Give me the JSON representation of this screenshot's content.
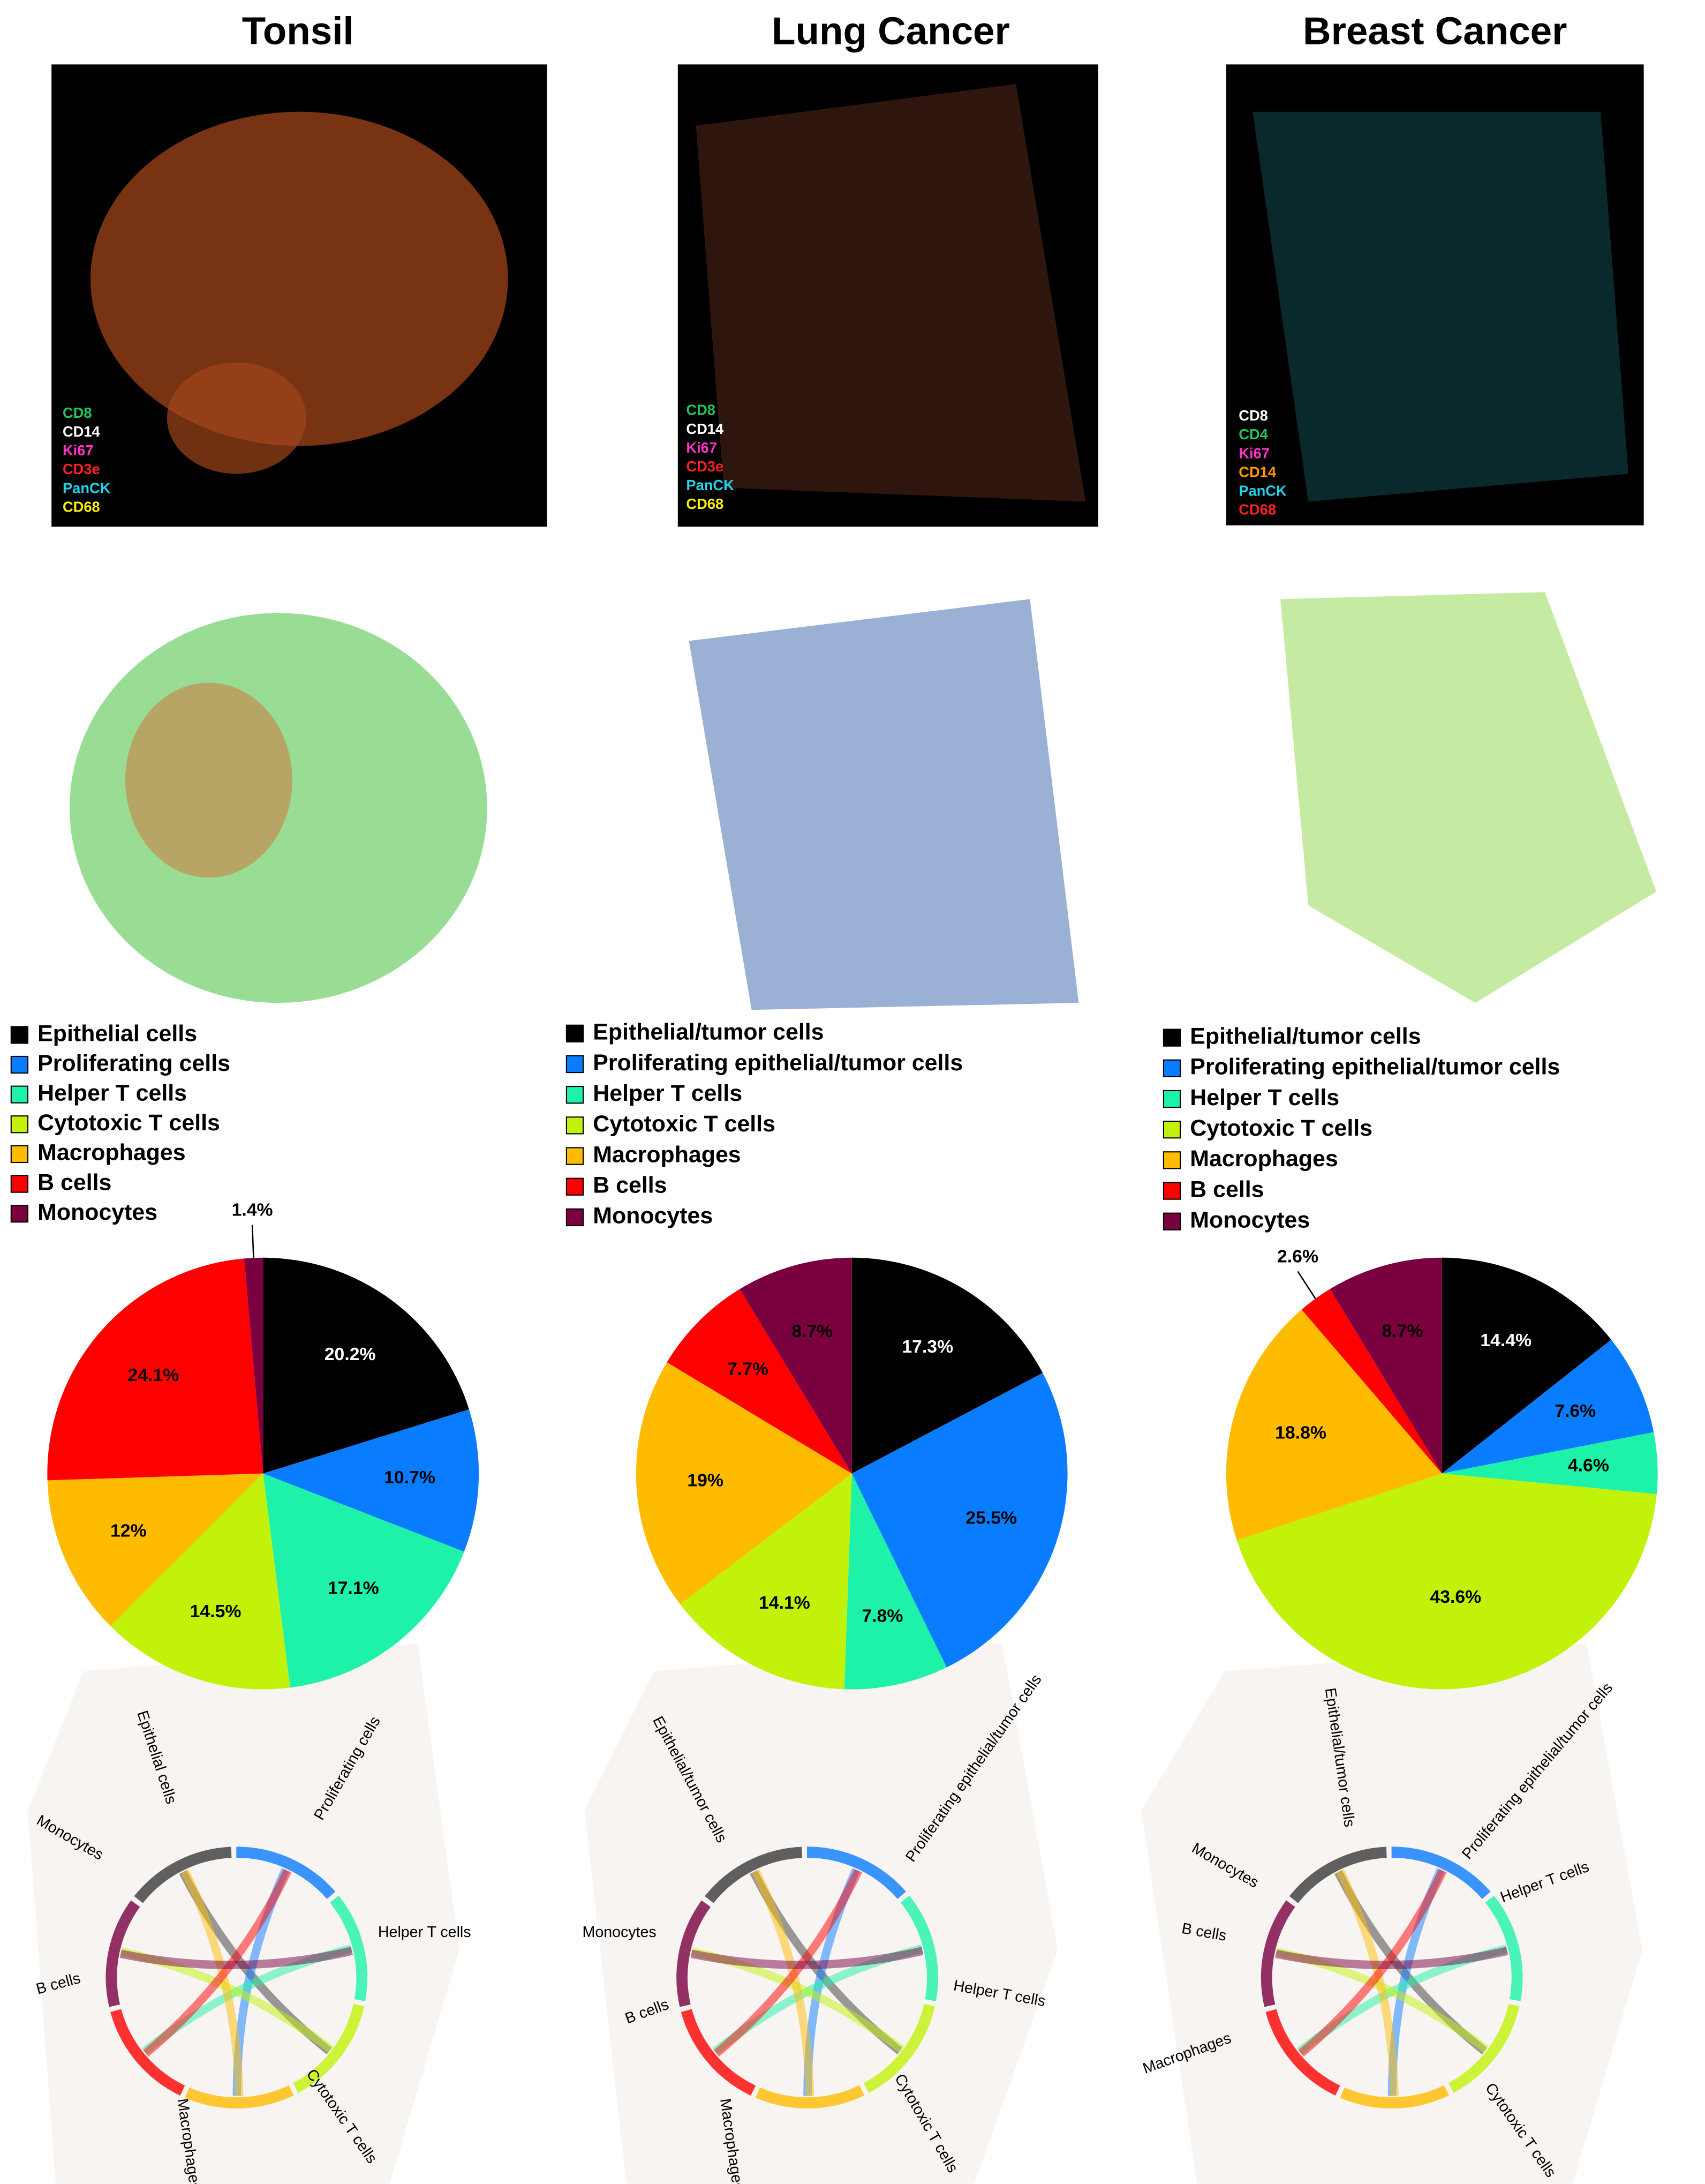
{
  "chart_data": [
    {
      "type": "pie",
      "title": "Tonsil",
      "categories": [
        "Epithelial cells",
        "Proliferating cells",
        "Helper T cells",
        "Cytotoxic T cells",
        "Macrophages",
        "B cells",
        "Monocytes"
      ],
      "values": [
        20.2,
        10.7,
        17.1,
        14.5,
        12,
        24.1,
        1.4
      ],
      "value_labels": [
        "20.2%",
        "10.7%",
        "17.1%",
        "14.5%",
        "12%",
        "24.1%",
        "1.4%"
      ],
      "colors": [
        "#000000",
        "#0a7cff",
        "#1ef2a8",
        "#c2f20a",
        "#ffbb00",
        "#ff0000",
        "#7a0040"
      ]
    },
    {
      "type": "pie",
      "title": "Lung Cancer",
      "categories": [
        "Epithelial/tumor cells",
        "Proliferating epithelial/tumor cells",
        "Helper T cells",
        "Cytotoxic T cells",
        "Macrophages",
        "B cells",
        "Monocytes"
      ],
      "values": [
        17.3,
        25.5,
        7.8,
        14.1,
        19,
        7.7,
        8.7
      ],
      "value_labels": [
        "17.3%",
        "25.5%",
        "7.8%",
        "14.1%",
        "19%",
        "7.7%",
        "8.7%"
      ],
      "colors": [
        "#000000",
        "#0a7cff",
        "#1ef2a8",
        "#c2f20a",
        "#ffbb00",
        "#ff0000",
        "#7a0040"
      ]
    },
    {
      "type": "pie",
      "title": "Breast Cancer",
      "categories": [
        "Epithelial/tumor cells",
        "Proliferating epithelial/tumor cells",
        "Helper T cells",
        "Cytotoxic T cells",
        "Macrophages",
        "B cells",
        "Monocytes"
      ],
      "values": [
        14.4,
        7.6,
        4.6,
        43.6,
        18.8,
        2.6,
        8.7
      ],
      "value_labels": [
        "14.4%",
        "7.6%",
        "4.6%",
        "43.6%",
        "18.8%",
        "2.6%",
        "8.7%"
      ],
      "colors": [
        "#000000",
        "#0a7cff",
        "#1ef2a8",
        "#c2f20a",
        "#ffbb00",
        "#ff0000",
        "#7a0040"
      ]
    }
  ],
  "images": [
    {
      "markers": [
        {
          "label": "CD8",
          "color": "#22c55e"
        },
        {
          "label": "CD14",
          "color": "#ffffff"
        },
        {
          "label": "Ki67",
          "color": "#ff33cc"
        },
        {
          "label": "CD3e",
          "color": "#ff2020"
        },
        {
          "label": "PanCK",
          "color": "#22d3ee"
        },
        {
          "label": "CD68",
          "color": "#ffee00"
        }
      ]
    },
    {
      "markers": [
        {
          "label": "CD8",
          "color": "#22c55e"
        },
        {
          "label": "CD14",
          "color": "#ffffff"
        },
        {
          "label": "Ki67",
          "color": "#ff33cc"
        },
        {
          "label": "CD3e",
          "color": "#ff2020"
        },
        {
          "label": "PanCK",
          "color": "#22d3ee"
        },
        {
          "label": "CD68",
          "color": "#ffee00"
        }
      ]
    },
    {
      "markers": [
        {
          "label": "CD8",
          "color": "#ffffff"
        },
        {
          "label": "CD4",
          "color": "#22c55e"
        },
        {
          "label": "Ki67",
          "color": "#ff33cc"
        },
        {
          "label": "CD14",
          "color": "#ff9900"
        },
        {
          "label": "PanCK",
          "color": "#22d3ee"
        },
        {
          "label": "CD68",
          "color": "#ff2020"
        }
      ]
    }
  ],
  "chords": [
    {
      "labels": [
        "Epithelial cells",
        "Proliferating cells",
        "Monocytes",
        "Helper T cells",
        "B cells",
        "Cytotoxic T cells",
        "Macrophages"
      ]
    },
    {
      "labels": [
        "Epithelial/tumor cells",
        "Proliferating epithelial/tumor cells",
        "Monocytes",
        "Helper T cells",
        "B cells",
        "Cytotoxic T cells",
        "Macrophages"
      ]
    },
    {
      "labels": [
        "Epithelial/tumor cells",
        "Proliferating epithelial/tumor cells",
        "Monocytes",
        "Helper T cells",
        "B cells",
        "Macrophages",
        "Cytotoxic T cells"
      ]
    }
  ]
}
